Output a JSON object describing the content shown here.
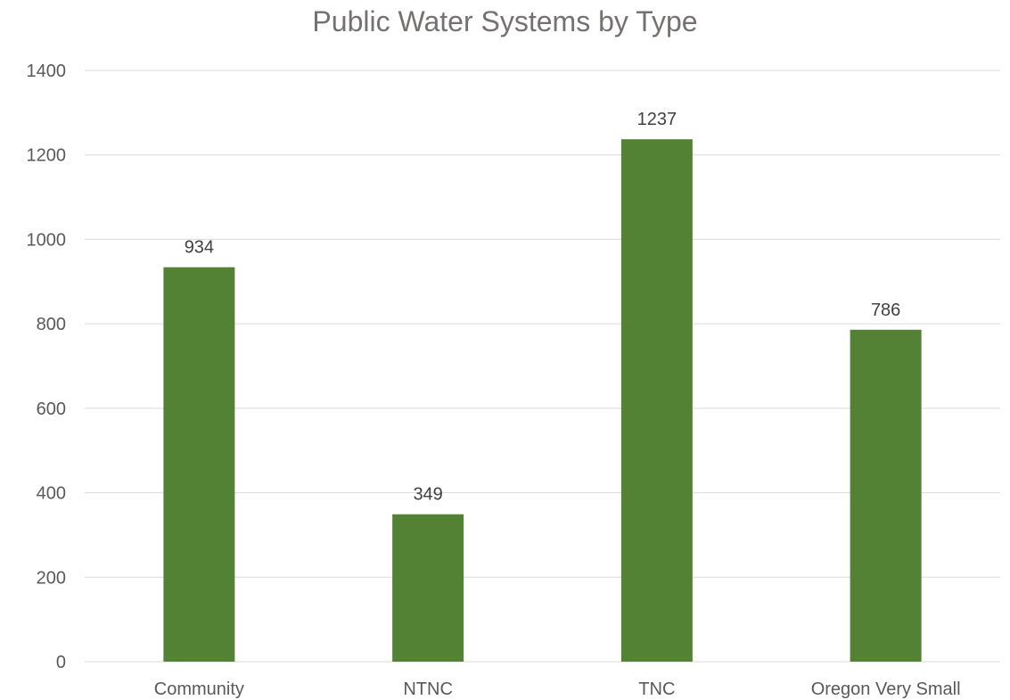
{
  "chart_data": {
    "type": "bar",
    "title": "Public Water Systems by Type",
    "categories": [
      "Community",
      "NTNC",
      "TNC",
      "Oregon Very Small"
    ],
    "values": [
      934,
      349,
      1237,
      786
    ],
    "data_labels": [
      "934",
      "349",
      "1237",
      "786"
    ],
    "xlabel": "",
    "ylabel": "",
    "ylim": [
      0,
      1400
    ],
    "yticks": [
      0,
      200,
      400,
      600,
      800,
      1000,
      1200,
      1400
    ],
    "ytick_labels": [
      "0",
      "200",
      "400",
      "600",
      "800",
      "1000",
      "1200",
      "1400"
    ],
    "grid": true,
    "legend": "none",
    "bar_color": "#548235",
    "grid_color": "#d9d9d9"
  }
}
